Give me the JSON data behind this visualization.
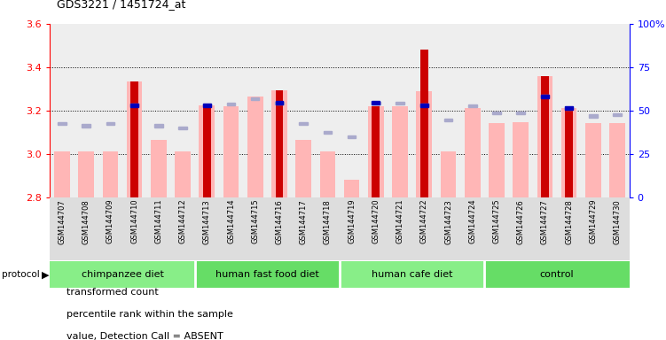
{
  "title": "GDS3221 / 1451724_at",
  "samples": [
    "GSM144707",
    "GSM144708",
    "GSM144709",
    "GSM144710",
    "GSM144711",
    "GSM144712",
    "GSM144713",
    "GSM144714",
    "GSM144715",
    "GSM144716",
    "GSM144717",
    "GSM144718",
    "GSM144719",
    "GSM144720",
    "GSM144721",
    "GSM144722",
    "GSM144723",
    "GSM144724",
    "GSM144725",
    "GSM144726",
    "GSM144727",
    "GSM144728",
    "GSM144729",
    "GSM144730"
  ],
  "red_vals": [
    3.01,
    3.01,
    3.01,
    3.335,
    3.01,
    3.01,
    3.225,
    3.22,
    3.265,
    3.295,
    3.065,
    3.01,
    2.88,
    3.22,
    3.22,
    3.48,
    3.01,
    3.21,
    3.01,
    3.145,
    3.36,
    3.21,
    3.01,
    3.01
  ],
  "pink_vals": [
    3.01,
    3.01,
    3.01,
    3.335,
    3.065,
    3.01,
    3.225,
    3.22,
    3.265,
    3.295,
    3.065,
    3.01,
    2.88,
    3.22,
    3.22,
    3.29,
    3.01,
    3.21,
    3.14,
    3.145,
    3.36,
    3.21,
    3.14,
    3.14
  ],
  "light_blue_vals": [
    3.14,
    3.13,
    3.14,
    3.225,
    3.13,
    3.12,
    3.225,
    3.23,
    3.255,
    3.235,
    3.14,
    3.1,
    3.08,
    3.235,
    3.235,
    3.225,
    3.155,
    3.22,
    3.19,
    3.19,
    3.265,
    3.21,
    3.175,
    3.18
  ],
  "blue_vals": [
    3.14,
    3.13,
    3.14,
    3.225,
    3.13,
    3.12,
    3.225,
    3.23,
    3.255,
    3.235,
    3.14,
    3.1,
    3.08,
    3.235,
    3.235,
    3.225,
    3.155,
    3.22,
    3.19,
    3.19,
    3.265,
    3.21,
    3.175,
    3.18
  ],
  "red_present": [
    false,
    false,
    false,
    true,
    false,
    false,
    true,
    false,
    false,
    true,
    false,
    false,
    false,
    true,
    false,
    true,
    false,
    false,
    false,
    false,
    true,
    true,
    false,
    false
  ],
  "blue_present": [
    false,
    false,
    false,
    true,
    false,
    false,
    true,
    false,
    false,
    true,
    false,
    false,
    false,
    true,
    false,
    true,
    false,
    false,
    false,
    false,
    true,
    true,
    false,
    false
  ],
  "groups": [
    {
      "name": "chimpanzee diet",
      "start": 0,
      "end": 5
    },
    {
      "name": "human fast food diet",
      "start": 6,
      "end": 11
    },
    {
      "name": "human cafe diet",
      "start": 12,
      "end": 17
    },
    {
      "name": "control",
      "start": 18,
      "end": 23
    }
  ],
  "ylim": [
    2.8,
    3.6
  ],
  "y_ticks_left": [
    2.8,
    3.0,
    3.2,
    3.4,
    3.6
  ],
  "y_ticks_right": [
    0,
    25,
    50,
    75,
    100
  ],
  "red_color": "#CC0000",
  "pink_color": "#FFB6B6",
  "blue_color": "#0000BB",
  "light_blue_color": "#AAAACC",
  "group_color1": "#88EE88",
  "group_color2": "#66DD66",
  "plot_bg": "#EEEEEE"
}
